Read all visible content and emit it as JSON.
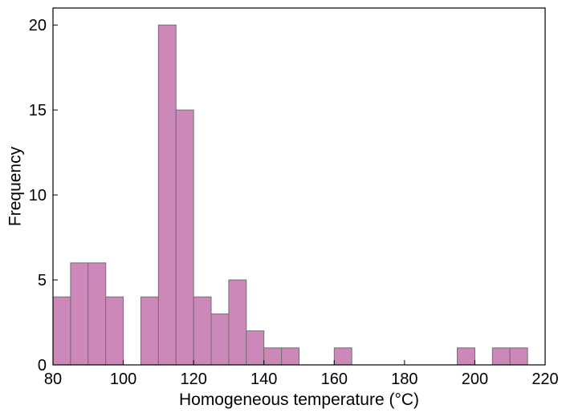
{
  "chart_data": {
    "type": "bar",
    "xlabel": "Homogeneous temperature (°C)",
    "ylabel": "Frequency",
    "xlim": [
      80,
      220
    ],
    "ylim": [
      0,
      21
    ],
    "xticks": [
      80,
      100,
      120,
      140,
      160,
      180,
      200,
      220
    ],
    "yticks": [
      0,
      5,
      10,
      15,
      20
    ],
    "bin_width": 5,
    "bins": [
      {
        "start": 80,
        "count": 4
      },
      {
        "start": 85,
        "count": 6
      },
      {
        "start": 90,
        "count": 6
      },
      {
        "start": 95,
        "count": 4
      },
      {
        "start": 105,
        "count": 4
      },
      {
        "start": 110,
        "count": 20
      },
      {
        "start": 115,
        "count": 15
      },
      {
        "start": 120,
        "count": 4
      },
      {
        "start": 125,
        "count": 3
      },
      {
        "start": 130,
        "count": 5
      },
      {
        "start": 135,
        "count": 2
      },
      {
        "start": 140,
        "count": 1
      },
      {
        "start": 145,
        "count": 1
      },
      {
        "start": 160,
        "count": 1
      },
      {
        "start": 195,
        "count": 1
      },
      {
        "start": 205,
        "count": 1
      },
      {
        "start": 210,
        "count": 1
      }
    ],
    "bar_color": "#cc88b8",
    "bar_edge_color": "#707070",
    "grid": false,
    "legend": "none"
  }
}
